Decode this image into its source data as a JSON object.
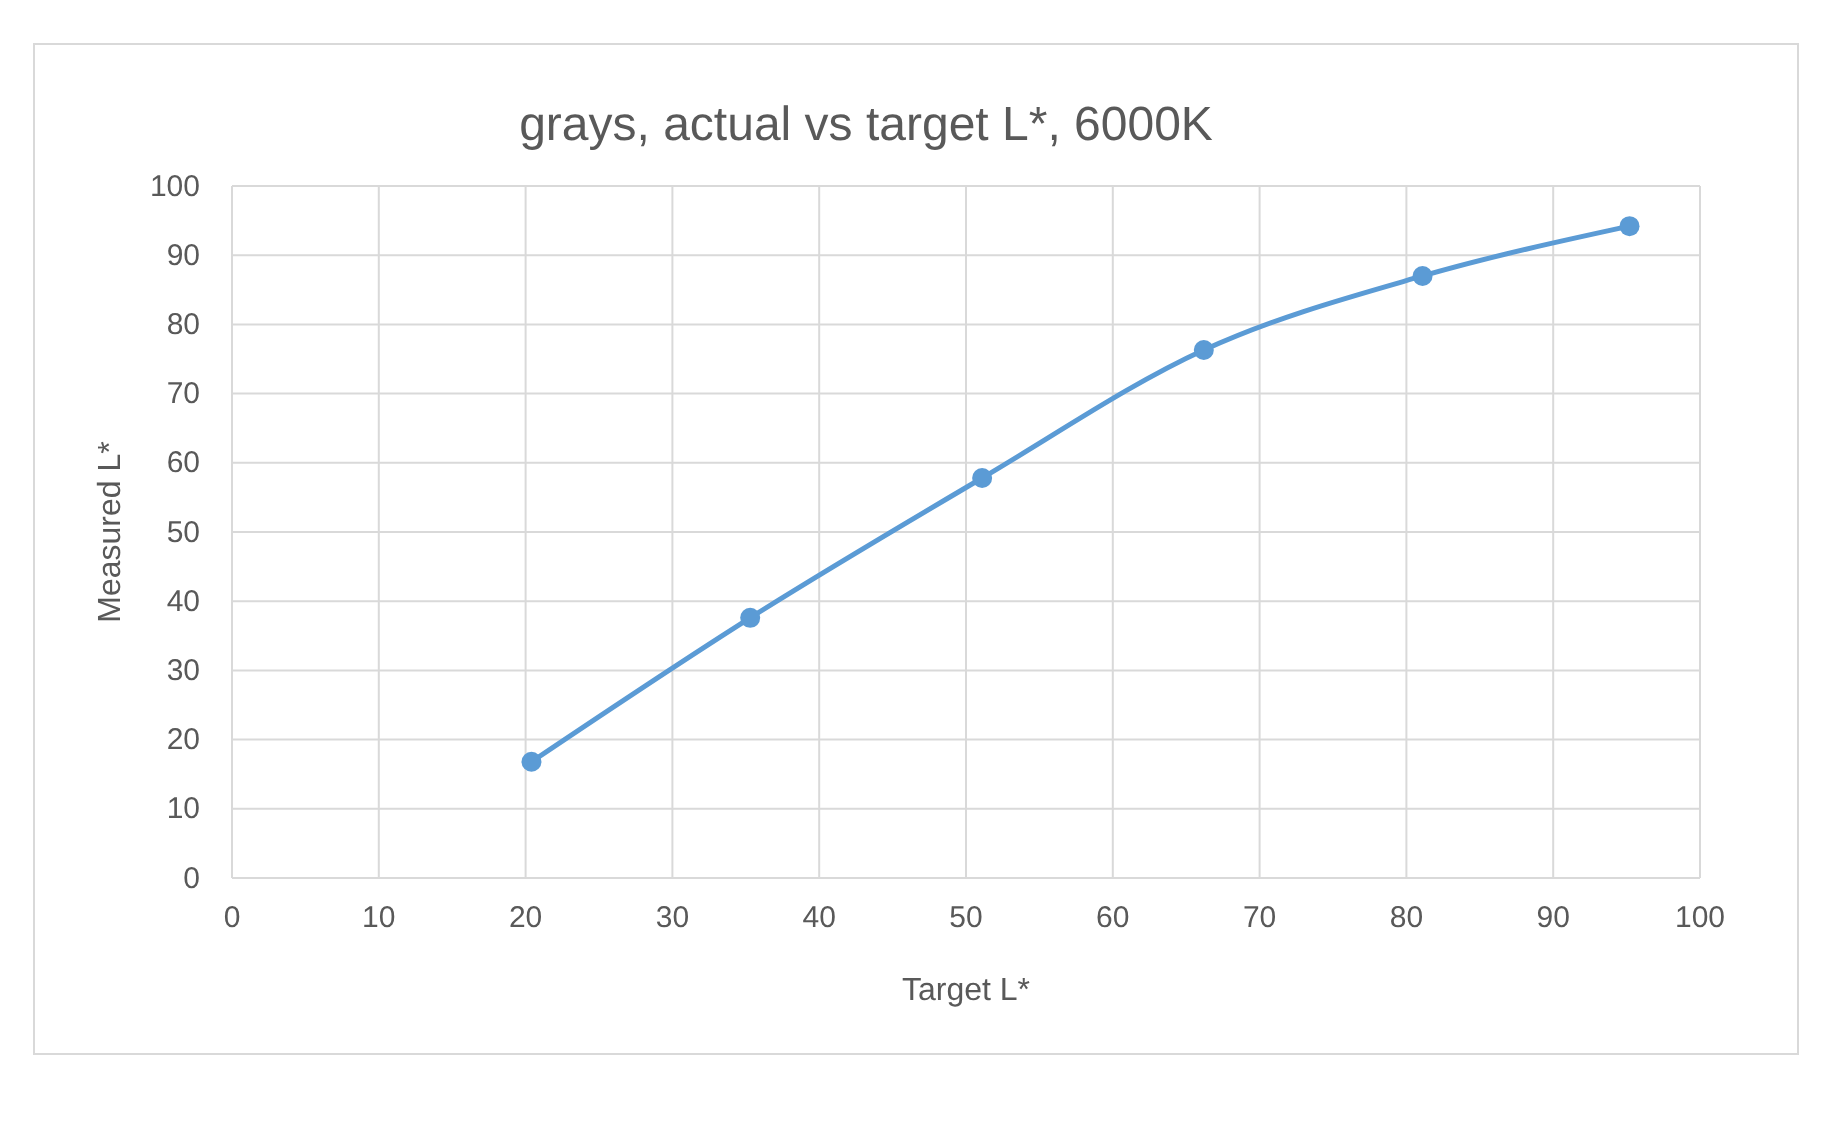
{
  "chart_data": {
    "type": "line",
    "title": "grays, actual vs target L*, 6000K",
    "xlabel": "Target L*",
    "ylabel": "Measured L*",
    "x": [
      20.4,
      35.3,
      51.1,
      66.2,
      81.1,
      95.2
    ],
    "series": [
      {
        "color": "#5b9bd5",
        "values": [
          16.8,
          37.6,
          57.8,
          76.3,
          87.0,
          94.2
        ]
      }
    ],
    "xlim": [
      0,
      100
    ],
    "xticks": [
      0,
      10,
      20,
      30,
      40,
      50,
      60,
      70,
      80,
      90,
      100
    ],
    "ylim": [
      0,
      100
    ],
    "yticks": [
      0,
      10,
      20,
      30,
      40,
      50,
      60,
      70,
      80,
      90,
      100
    ],
    "grid": true,
    "marker": "circle",
    "line_style": "solid"
  }
}
